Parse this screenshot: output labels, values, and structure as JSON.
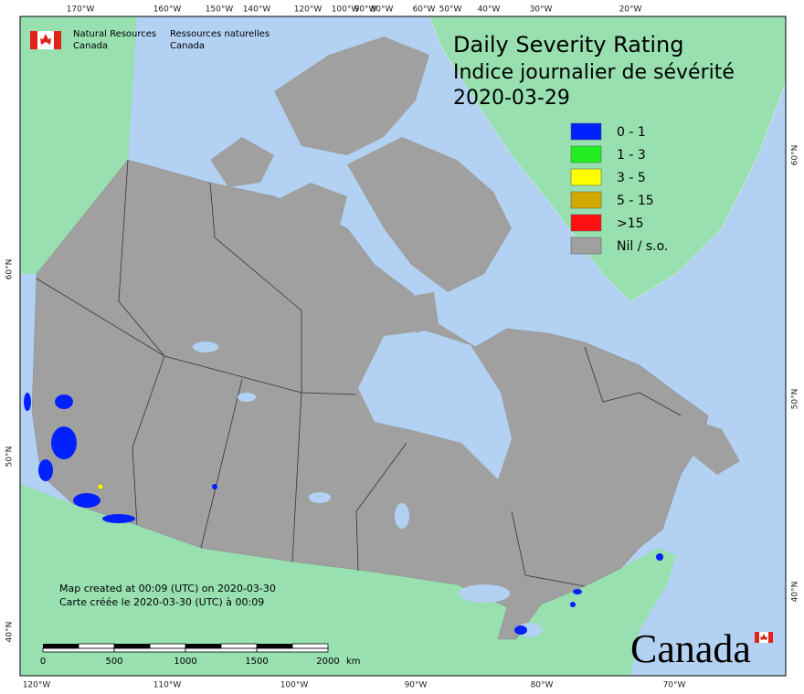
{
  "header": {
    "org_en": [
      "Natural Resources",
      "Canada"
    ],
    "org_fr": [
      "Ressources naturelles",
      "Canada"
    ]
  },
  "title": {
    "en": "Daily Severity Rating",
    "fr": "Indice journalier de sévérité",
    "date": "2020-03-29"
  },
  "legend": {
    "items": [
      {
        "label": "0 - 1",
        "color": "#0022ff"
      },
      {
        "label": "1 - 3",
        "color": "#22ee22"
      },
      {
        "label": "3 - 5",
        "color": "#ffff00"
      },
      {
        "label": "5 - 15",
        "color": "#d4aa00"
      },
      {
        "label": ">15",
        "color": "#ff1111"
      },
      {
        "label": "Nil / s.o.",
        "color": "#a0a0a0"
      }
    ]
  },
  "graticule": {
    "top": [
      "170°W",
      "160°W",
      "150°W",
      "140°W",
      "120°W",
      "100°W",
      "90°W",
      "80°W",
      "60°W",
      "50°W",
      "40°W",
      "30°W",
      "20°W"
    ],
    "bottom": [
      "120°W",
      "110°W",
      "100°W",
      "90°W",
      "80°W",
      "70°W"
    ],
    "left": [
      "60°N",
      "50°N",
      "40°N"
    ],
    "right": [
      "60°N",
      "50°N",
      "40°N"
    ]
  },
  "credits": {
    "en": "Map created at 00:09 (UTC) on 2020-03-30",
    "fr": "Carte créée le 2020-03-30 (UTC) à 00:09"
  },
  "scale_bar": {
    "labels": [
      "0",
      "500",
      "1000",
      "1500",
      "2000"
    ],
    "unit": "km"
  },
  "wordmark": "Canada"
}
